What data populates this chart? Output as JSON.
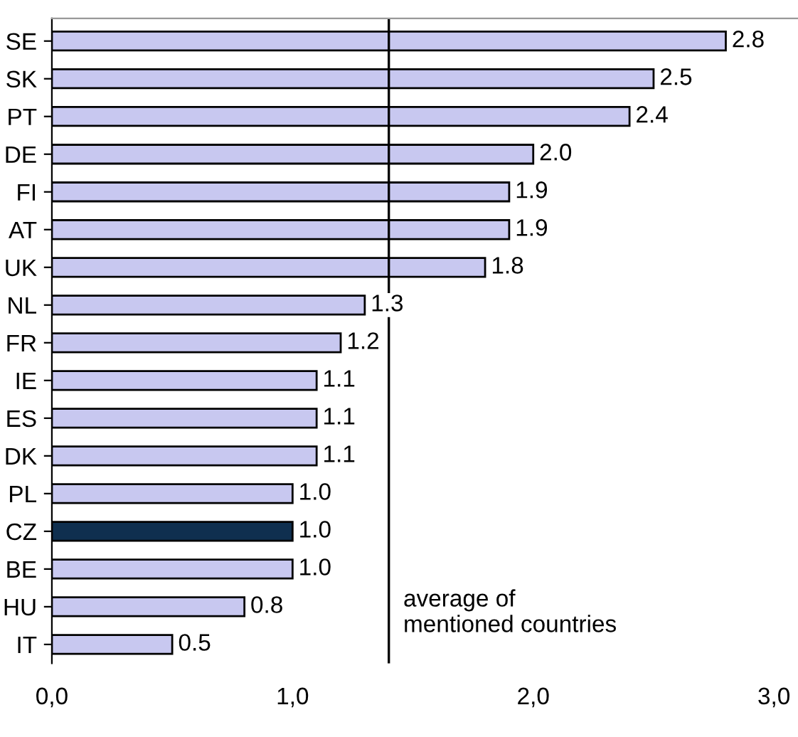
{
  "chart_data": {
    "type": "bar",
    "orientation": "horizontal",
    "categories": [
      "SE",
      "SK",
      "PT",
      "DE",
      "FI",
      "AT",
      "UK",
      "NL",
      "FR",
      "IE",
      "ES",
      "DK",
      "PL",
      "CZ",
      "BE",
      "HU",
      "IT"
    ],
    "values": [
      2.8,
      2.5,
      2.4,
      2.0,
      1.9,
      1.9,
      1.8,
      1.3,
      1.2,
      1.1,
      1.1,
      1.1,
      1.0,
      1.0,
      1.0,
      0.8,
      0.5
    ],
    "colors": [
      "#c8c8f0",
      "#c8c8f0",
      "#c8c8f0",
      "#c8c8f0",
      "#c8c8f0",
      "#c8c8f0",
      "#c8c8f0",
      "#c8c8f0",
      "#c8c8f0",
      "#c8c8f0",
      "#c8c8f0",
      "#c8c8f0",
      "#c8c8f0",
      "#0f2f4f",
      "#c8c8f0",
      "#c8c8f0",
      "#c8c8f0"
    ],
    "value_labels": [
      "2.8",
      "2.5",
      "2.4",
      "2.0",
      "1.9",
      "1.9",
      "1.8",
      "1.3",
      "1.2",
      "1.1",
      "1.1",
      "1.1",
      "1.0",
      "1.0",
      "1.0",
      "0.8",
      "0.5"
    ],
    "xlim": [
      0,
      3.1
    ],
    "xticks": [
      {
        "value": 0,
        "label": "0,0"
      },
      {
        "value": 1,
        "label": "1,0"
      },
      {
        "value": 2,
        "label": "2,0"
      },
      {
        "value": 3,
        "label": "3,0"
      }
    ],
    "ref_lines": [
      {
        "axis": "x",
        "value": 1.4,
        "label": "average of\nmentioned countries",
        "color": "#000000"
      }
    ],
    "grid": false,
    "legend": false
  }
}
